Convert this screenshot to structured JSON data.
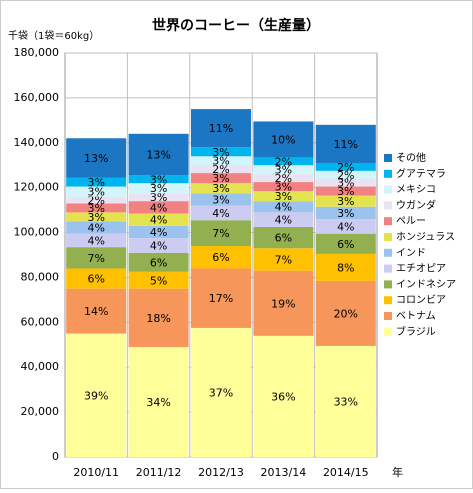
{
  "chart_data": {
    "type": "stacked_bar",
    "title": "世界のコーヒー（生産量）",
    "y_label": "千袋（1袋＝60kg）",
    "x_label": "年",
    "categories": [
      "2010/11",
      "2011/12",
      "2012/13",
      "2013/14",
      "2014/15"
    ],
    "ylim": [
      0,
      180000
    ],
    "yticks": [
      0,
      {
        "value": 20000,
        "label": "20,000"
      },
      {
        "value": 40000,
        "label": "40,000"
      },
      {
        "value": 60000,
        "label": "60,000"
      },
      {
        "value": 80000,
        "label": "80,000"
      },
      {
        "value": 100000,
        "label": "100,000"
      },
      {
        "value": 120000,
        "label": "120,000"
      },
      {
        "value": 140000,
        "label": "140,000"
      },
      {
        "value": 160000,
        "label": "160,000"
      },
      {
        "value": 180000,
        "label": "180,000"
      }
    ],
    "grid": true,
    "series": [
      {
        "name": "ブラジル",
        "color": "#ffff99",
        "values": [
          55000,
          49000,
          57500,
          54000,
          49500
        ],
        "value_labels": [
          "39%",
          "34%",
          "37%",
          "36%",
          "33%"
        ]
      },
      {
        "name": "ベトナム",
        "color": "#f7965a",
        "values": [
          20000,
          26000,
          26500,
          29000,
          29000
        ],
        "value_labels": [
          "14%",
          "18%",
          "17%",
          "19%",
          "20%"
        ]
      },
      {
        "name": "コロンビア",
        "color": "#ffc000",
        "values": [
          9000,
          7500,
          10000,
          10000,
          12000
        ],
        "value_labels": [
          "6%",
          "5%",
          "6%",
          "7%",
          "8%"
        ]
      },
      {
        "name": "インドネシア",
        "color": "#92b050",
        "values": [
          9500,
          8500,
          11500,
          9500,
          9000
        ],
        "value_labels": [
          "7%",
          "6%",
          "7%",
          "6%",
          "6%"
        ]
      },
      {
        "name": "エチオピア",
        "color": "#ccccf2",
        "values": [
          6000,
          6500,
          6500,
          6500,
          6500
        ],
        "value_labels": [
          "4%",
          "4%",
          "4%",
          "4%",
          "4%"
        ]
      },
      {
        "name": "インド",
        "color": "#9cc3ee",
        "values": [
          5500,
          5500,
          5500,
          5000,
          5500
        ],
        "value_labels": [
          "4%",
          "4%",
          "3%",
          "4%",
          "3%"
        ]
      },
      {
        "name": "ホンジュラス",
        "color": "#e3e34f",
        "values": [
          4000,
          5500,
          4500,
          4500,
          5000
        ],
        "value_labels": [
          "3%",
          "4%",
          "3%",
          "3%",
          "3%"
        ]
      },
      {
        "name": "ペルー",
        "color": "#f28282",
        "values": [
          4000,
          5500,
          4500,
          4000,
          4000
        ],
        "value_labels": [
          "3%",
          "4%",
          "3%",
          "3%",
          "3%"
        ]
      },
      {
        "name": "ウガンダ",
        "color": "#e8e2f2",
        "values": [
          3000,
          3500,
          3500,
          3500,
          3500
        ],
        "value_labels": [
          "2%",
          "3%",
          "2%",
          "2%",
          "3%"
        ]
      },
      {
        "name": "メキシコ",
        "color": "#d2f4fb",
        "values": [
          4500,
          4500,
          4000,
          4000,
          3500
        ],
        "value_labels": [
          "3%",
          "3%",
          "3%",
          "3%",
          "2%"
        ]
      },
      {
        "name": "グアテマラ",
        "color": "#00b4f0",
        "values": [
          4000,
          3500,
          4000,
          3500,
          3500
        ],
        "value_labels": [
          "3%",
          "3%",
          "3%",
          "2%",
          "2%"
        ]
      },
      {
        "name": "その他",
        "color": "#1b76c4",
        "values": [
          17500,
          18500,
          17000,
          16000,
          17000
        ],
        "value_labels": [
          "13%",
          "13%",
          "11%",
          "10%",
          "11%"
        ]
      }
    ]
  }
}
